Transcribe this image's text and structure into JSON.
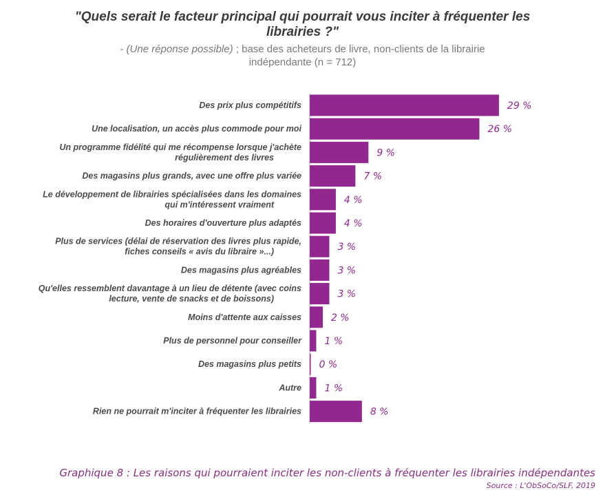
{
  "title": "\"Quels serait le facteur principal qui pourrait vous inciter à fréquenter les librairies ?\"",
  "subtitle_italic": "- (Une réponse possible)",
  "subtitle_rest": " ; base des acheteurs de livre, non-clients de la librairie indépendante (n = 712)",
  "caption": "Graphique 8 : Les raisons qui pourraient inciter les non-clients à fréquenter les librairies indépendantes",
  "source": "Source : L'ObSoCo/SLF, 2019",
  "colors": {
    "bar": "#92278f",
    "axis": "#c7a6c6"
  },
  "chart_data": {
    "type": "bar",
    "orientation": "horizontal",
    "categories": [
      [
        "Des prix plus compétitifs"
      ],
      [
        "Une localisation, un accès plus commode pour moi"
      ],
      [
        "Un programme fidélité qui me récompense lorsque j'achète",
        "régulièrement des livres"
      ],
      [
        "Des magasins plus grands, avec une offre plus variée"
      ],
      [
        "Le développement de librairies spécialisées dans les domaines",
        "qui m'intéressent vraiment"
      ],
      [
        "Des horaires d'ouverture plus adaptés"
      ],
      [
        "Plus de services (délai de réservation des livres plus rapide,",
        "fiches conseils « avis du libraire »...)"
      ],
      [
        "Des magasins plus agréables"
      ],
      [
        "Qu'elles ressemblent davantage à un lieu de détente (avec coins",
        "lecture, vente de snacks et de boissons)"
      ],
      [
        "Moins d'attente aux caisses"
      ],
      [
        "Plus de personnel pour conseiller"
      ],
      [
        "Des magasins plus petits"
      ],
      [
        "Autre"
      ],
      [
        "Rien ne pourrait m'inciter à fréquenter les librairies"
      ]
    ],
    "values": [
      29,
      26,
      9,
      7,
      4,
      4,
      3,
      3,
      3,
      2,
      1,
      0,
      1,
      8
    ],
    "value_labels": [
      "29 %",
      "26 %",
      "9 %",
      "7 %",
      "4 %",
      "4 %",
      "3 %",
      "3 %",
      "3 %",
      "2 %",
      "1 %",
      "0 %",
      "1 %",
      "8 %"
    ],
    "unit": "%",
    "grid": false,
    "legend": "none"
  }
}
